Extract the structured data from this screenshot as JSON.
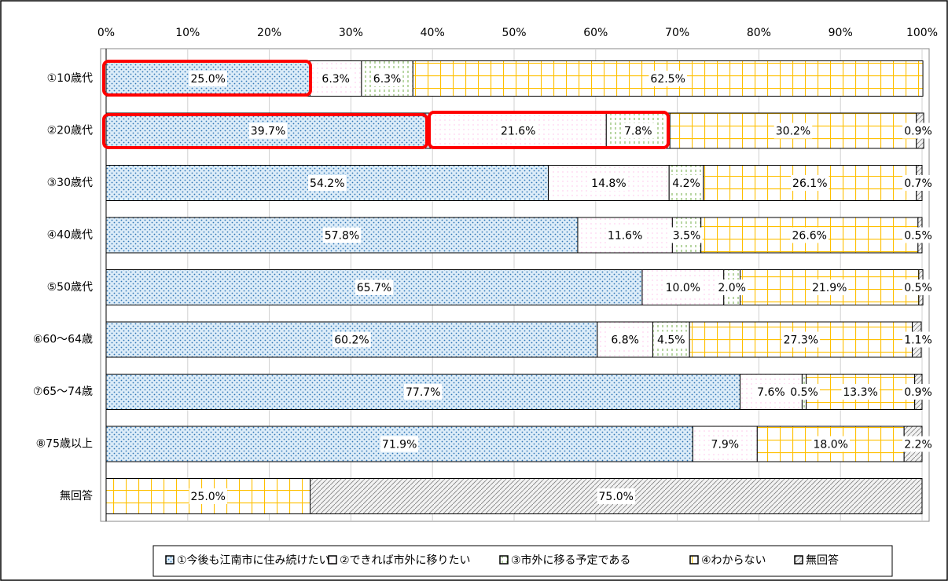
{
  "chart_data": {
    "type": "bar",
    "orientation": "horizontal",
    "stacked": true,
    "categories": [
      "①10歳代",
      "②20歳代",
      "③30歳代",
      "④40歳代",
      "⑤50歳代",
      "⑥60～64歳",
      "⑦65～74歳",
      "⑧75歳以上",
      "無回答"
    ],
    "series": [
      {
        "name": "①今後も江南市に住み続けたい",
        "color": "#2e75b6",
        "values": [
          25.0,
          39.7,
          54.2,
          57.8,
          65.7,
          60.2,
          77.7,
          71.9,
          0
        ],
        "value_labels": [
          "25.0%",
          "39.7%",
          "54.2%",
          "57.8%",
          "65.7%",
          "60.2%",
          "77.7%",
          "71.9%",
          null
        ]
      },
      {
        "name": "②できれば市外に移りたい",
        "color": "#ff66cc",
        "values": [
          6.3,
          21.6,
          14.8,
          11.6,
          10.0,
          6.8,
          7.6,
          7.9,
          0
        ],
        "value_labels": [
          "6.3%",
          "21.6%",
          "14.8%",
          "11.6%",
          "10.0%",
          "6.8%",
          "7.6%",
          "7.9%",
          null
        ]
      },
      {
        "name": "③市外に移る予定である",
        "color": "#70ad47",
        "values": [
          6.3,
          7.8,
          4.2,
          3.5,
          2.0,
          4.5,
          0.5,
          0,
          0
        ],
        "value_labels": [
          "6.3%",
          "7.8%",
          "4.2%",
          "3.5%",
          "2.0%",
          "4.5%",
          "0.5%",
          null,
          null
        ]
      },
      {
        "name": "④わからない",
        "color": "#ffc000",
        "values": [
          62.5,
          30.2,
          26.1,
          26.6,
          21.9,
          27.3,
          13.3,
          18.0,
          25.0
        ],
        "value_labels": [
          "62.5%",
          "30.2%",
          "26.1%",
          "26.6%",
          "21.9%",
          "27.3%",
          "13.3%",
          "18.0%",
          "25.0%"
        ]
      },
      {
        "name": "無回答",
        "color": "#808080",
        "values": [
          0,
          0.9,
          0.7,
          0.5,
          0.5,
          1.1,
          0.9,
          2.2,
          75.0
        ],
        "value_labels": [
          null,
          "0.9%",
          "0.7%",
          "0.5%",
          "0.5%",
          "1.1%",
          "0.9%",
          "2.2%",
          "75.0%"
        ]
      }
    ],
    "xlim": [
      0,
      100
    ],
    "xticks": [
      {
        "value": 0,
        "label": "0%"
      },
      {
        "value": 10,
        "label": "10%"
      },
      {
        "value": 20,
        "label": "20%"
      },
      {
        "value": 30,
        "label": "30%"
      },
      {
        "value": 40,
        "label": "40%"
      },
      {
        "value": 50,
        "label": "50%"
      },
      {
        "value": 60,
        "label": "60%"
      },
      {
        "value": 70,
        "label": "70%"
      },
      {
        "value": 80,
        "label": "80%"
      },
      {
        "value": 90,
        "label": "90%"
      },
      {
        "value": 100,
        "label": "100%"
      }
    ],
    "legend": "bottom"
  }
}
